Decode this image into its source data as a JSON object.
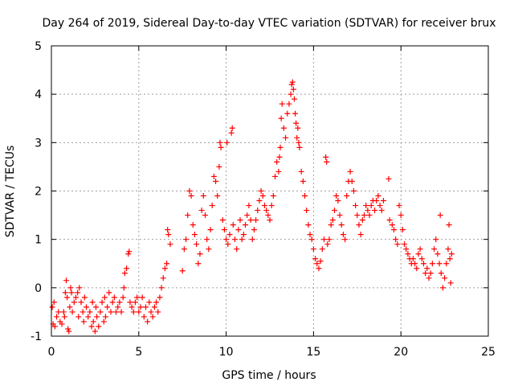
{
  "chart_data": {
    "type": "scatter",
    "title": "Day 264 of 2019, Sidereal Day-to-day VTEC variation (SDTVAR) for receiver brux",
    "xlabel": "GPS time / hours",
    "ylabel": "SDTVAR / TECUs",
    "xlim": [
      0,
      25
    ],
    "ylim": [
      -1,
      5
    ],
    "x_ticks": [
      0,
      5,
      10,
      15,
      20,
      25
    ],
    "y_ticks": [
      -1,
      0,
      1,
      2,
      3,
      4,
      5
    ],
    "grid": true,
    "marker": "+",
    "marker_color": "#ff0000",
    "series": [
      {
        "name": "SDTVAR",
        "points": [
          [
            0.05,
            -0.4
          ],
          [
            0.1,
            -0.75
          ],
          [
            0.15,
            -0.3
          ],
          [
            0.2,
            -0.8
          ],
          [
            0.3,
            -0.6
          ],
          [
            0.4,
            -0.5
          ],
          [
            0.5,
            -0.7
          ],
          [
            0.6,
            -0.75
          ],
          [
            0.7,
            -0.5
          ],
          [
            0.75,
            -0.6
          ],
          [
            0.8,
            -0.1
          ],
          [
            0.85,
            0.15
          ],
          [
            0.9,
            -0.2
          ],
          [
            0.95,
            -0.85
          ],
          [
            1.0,
            -0.9
          ],
          [
            1.05,
            -0.4
          ],
          [
            1.1,
            0.0
          ],
          [
            1.15,
            -0.1
          ],
          [
            1.2,
            -0.5
          ],
          [
            1.3,
            -0.3
          ],
          [
            1.4,
            -0.2
          ],
          [
            1.5,
            -0.1
          ],
          [
            1.55,
            -0.6
          ],
          [
            1.6,
            0.0
          ],
          [
            1.7,
            -0.3
          ],
          [
            1.8,
            -0.5
          ],
          [
            1.85,
            -0.7
          ],
          [
            1.9,
            -0.2
          ],
          [
            2.0,
            -0.4
          ],
          [
            2.1,
            -0.6
          ],
          [
            2.2,
            -0.5
          ],
          [
            2.3,
            -0.8
          ],
          [
            2.35,
            -0.3
          ],
          [
            2.4,
            -0.7
          ],
          [
            2.5,
            -0.9
          ],
          [
            2.55,
            -0.4
          ],
          [
            2.6,
            -0.6
          ],
          [
            2.7,
            -0.8
          ],
          [
            2.8,
            -0.5
          ],
          [
            2.9,
            -0.3
          ],
          [
            3.0,
            -0.7
          ],
          [
            3.05,
            -0.2
          ],
          [
            3.1,
            -0.6
          ],
          [
            3.2,
            -0.4
          ],
          [
            3.3,
            -0.1
          ],
          [
            3.4,
            -0.5
          ],
          [
            3.5,
            -0.3
          ],
          [
            3.6,
            -0.2
          ],
          [
            3.7,
            -0.5
          ],
          [
            3.8,
            -0.4
          ],
          [
            3.9,
            -0.3
          ],
          [
            4.0,
            -0.5
          ],
          [
            4.1,
            -0.2
          ],
          [
            4.15,
            0.0
          ],
          [
            4.2,
            0.3
          ],
          [
            4.3,
            0.4
          ],
          [
            4.4,
            0.7
          ],
          [
            4.45,
            0.75
          ],
          [
            4.5,
            -0.3
          ],
          [
            4.6,
            -0.4
          ],
          [
            4.7,
            -0.5
          ],
          [
            4.8,
            -0.3
          ],
          [
            4.9,
            -0.2
          ],
          [
            5.0,
            -0.5
          ],
          [
            5.1,
            -0.4
          ],
          [
            5.2,
            -0.2
          ],
          [
            5.3,
            -0.6
          ],
          [
            5.4,
            -0.4
          ],
          [
            5.5,
            -0.7
          ],
          [
            5.6,
            -0.3
          ],
          [
            5.7,
            -0.5
          ],
          [
            5.8,
            -0.6
          ],
          [
            5.9,
            -0.4
          ],
          [
            6.0,
            -0.3
          ],
          [
            6.1,
            -0.5
          ],
          [
            6.2,
            -0.2
          ],
          [
            6.3,
            0.0
          ],
          [
            6.4,
            0.2
          ],
          [
            6.5,
            0.4
          ],
          [
            6.6,
            0.5
          ],
          [
            6.65,
            1.2
          ],
          [
            6.7,
            1.1
          ],
          [
            6.8,
            0.9
          ],
          [
            7.5,
            0.35
          ],
          [
            7.6,
            0.8
          ],
          [
            7.7,
            1.0
          ],
          [
            7.8,
            1.5
          ],
          [
            7.9,
            2.0
          ],
          [
            8.0,
            1.9
          ],
          [
            8.1,
            1.3
          ],
          [
            8.2,
            1.1
          ],
          [
            8.3,
            0.9
          ],
          [
            8.4,
            0.5
          ],
          [
            8.5,
            0.7
          ],
          [
            8.6,
            1.6
          ],
          [
            8.7,
            1.9
          ],
          [
            8.8,
            1.5
          ],
          [
            8.9,
            1.0
          ],
          [
            9.0,
            0.8
          ],
          [
            9.1,
            1.2
          ],
          [
            9.2,
            1.7
          ],
          [
            9.3,
            2.3
          ],
          [
            9.4,
            2.2
          ],
          [
            9.5,
            1.9
          ],
          [
            9.6,
            2.5
          ],
          [
            9.65,
            3.0
          ],
          [
            9.7,
            2.9
          ],
          [
            9.8,
            1.4
          ],
          [
            9.9,
            1.2
          ],
          [
            10.0,
            1.0
          ],
          [
            10.05,
            3.0
          ],
          [
            10.1,
            0.9
          ],
          [
            10.2,
            1.1
          ],
          [
            10.3,
            3.2
          ],
          [
            10.35,
            3.3
          ],
          [
            10.4,
            1.3
          ],
          [
            10.5,
            1.0
          ],
          [
            10.6,
            0.8
          ],
          [
            10.7,
            1.2
          ],
          [
            10.8,
            1.4
          ],
          [
            10.9,
            1.0
          ],
          [
            11.0,
            1.1
          ],
          [
            11.1,
            1.3
          ],
          [
            11.2,
            1.5
          ],
          [
            11.3,
            1.7
          ],
          [
            11.4,
            1.4
          ],
          [
            11.5,
            1.0
          ],
          [
            11.6,
            1.2
          ],
          [
            11.7,
            1.4
          ],
          [
            11.8,
            1.6
          ],
          [
            11.9,
            1.8
          ],
          [
            12.0,
            2.0
          ],
          [
            12.1,
            1.9
          ],
          [
            12.2,
            1.7
          ],
          [
            12.3,
            1.6
          ],
          [
            12.4,
            1.5
          ],
          [
            12.5,
            1.4
          ],
          [
            12.6,
            1.7
          ],
          [
            12.7,
            1.9
          ],
          [
            12.8,
            2.3
          ],
          [
            12.9,
            2.6
          ],
          [
            13.0,
            2.4
          ],
          [
            13.05,
            2.7
          ],
          [
            13.1,
            2.9
          ],
          [
            13.15,
            3.5
          ],
          [
            13.2,
            3.8
          ],
          [
            13.3,
            3.3
          ],
          [
            13.4,
            3.1
          ],
          [
            13.5,
            3.6
          ],
          [
            13.6,
            3.8
          ],
          [
            13.7,
            4.0
          ],
          [
            13.75,
            4.2
          ],
          [
            13.8,
            4.25
          ],
          [
            13.85,
            4.1
          ],
          [
            13.9,
            3.9
          ],
          [
            13.95,
            3.6
          ],
          [
            14.0,
            3.4
          ],
          [
            14.05,
            3.1
          ],
          [
            14.1,
            3.3
          ],
          [
            14.15,
            3.0
          ],
          [
            14.2,
            2.9
          ],
          [
            14.3,
            2.4
          ],
          [
            14.4,
            2.2
          ],
          [
            14.5,
            1.9
          ],
          [
            14.6,
            1.6
          ],
          [
            14.7,
            1.3
          ],
          [
            14.8,
            1.1
          ],
          [
            14.9,
            1.0
          ],
          [
            15.0,
            0.8
          ],
          [
            15.1,
            0.6
          ],
          [
            15.2,
            0.5
          ],
          [
            15.3,
            0.4
          ],
          [
            15.4,
            0.55
          ],
          [
            15.5,
            0.8
          ],
          [
            15.6,
            1.0
          ],
          [
            15.7,
            2.7
          ],
          [
            15.75,
            2.6
          ],
          [
            15.8,
            0.9
          ],
          [
            15.9,
            1.0
          ],
          [
            16.0,
            1.3
          ],
          [
            16.1,
            1.4
          ],
          [
            16.2,
            1.6
          ],
          [
            16.3,
            1.9
          ],
          [
            16.4,
            1.8
          ],
          [
            16.5,
            1.5
          ],
          [
            16.6,
            1.3
          ],
          [
            16.7,
            1.1
          ],
          [
            16.8,
            1.0
          ],
          [
            16.9,
            1.9
          ],
          [
            17.0,
            2.2
          ],
          [
            17.1,
            2.4
          ],
          [
            17.2,
            2.2
          ],
          [
            17.3,
            2.0
          ],
          [
            17.4,
            1.7
          ],
          [
            17.5,
            1.5
          ],
          [
            17.6,
            1.3
          ],
          [
            17.7,
            1.1
          ],
          [
            17.8,
            1.4
          ],
          [
            17.9,
            1.5
          ],
          [
            18.0,
            1.7
          ],
          [
            18.1,
            1.6
          ],
          [
            18.2,
            1.5
          ],
          [
            18.3,
            1.7
          ],
          [
            18.4,
            1.8
          ],
          [
            18.5,
            1.6
          ],
          [
            18.6,
            1.8
          ],
          [
            18.7,
            1.9
          ],
          [
            18.8,
            1.7
          ],
          [
            18.9,
            1.6
          ],
          [
            19.0,
            1.8
          ],
          [
            19.3,
            2.25
          ],
          [
            19.35,
            1.4
          ],
          [
            19.5,
            1.3
          ],
          [
            19.6,
            1.2
          ],
          [
            19.7,
            1.0
          ],
          [
            19.8,
            0.9
          ],
          [
            19.9,
            1.7
          ],
          [
            20.0,
            1.5
          ],
          [
            20.1,
            1.2
          ],
          [
            20.2,
            0.9
          ],
          [
            20.3,
            0.8
          ],
          [
            20.4,
            0.7
          ],
          [
            20.5,
            0.6
          ],
          [
            20.6,
            0.5
          ],
          [
            20.7,
            0.6
          ],
          [
            20.8,
            0.5
          ],
          [
            20.9,
            0.4
          ],
          [
            21.0,
            0.7
          ],
          [
            21.1,
            0.8
          ],
          [
            21.2,
            0.6
          ],
          [
            21.3,
            0.5
          ],
          [
            21.4,
            0.3
          ],
          [
            21.5,
            0.4
          ],
          [
            21.6,
            0.2
          ],
          [
            21.7,
            0.3
          ],
          [
            21.8,
            0.5
          ],
          [
            21.9,
            0.8
          ],
          [
            22.0,
            1.0
          ],
          [
            22.1,
            0.7
          ],
          [
            22.2,
            0.5
          ],
          [
            22.25,
            1.5
          ],
          [
            22.3,
            0.3
          ],
          [
            22.4,
            0.0
          ],
          [
            22.5,
            0.2
          ],
          [
            22.6,
            0.5
          ],
          [
            22.7,
            0.8
          ],
          [
            22.75,
            1.3
          ],
          [
            22.8,
            0.6
          ],
          [
            22.85,
            0.1
          ],
          [
            22.9,
            0.7
          ]
        ]
      }
    ]
  }
}
